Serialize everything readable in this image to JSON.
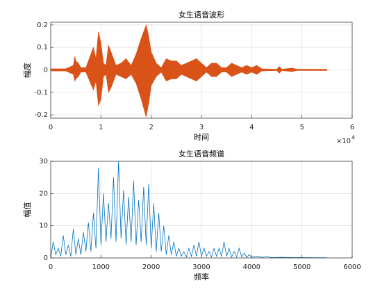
{
  "chart_data": [
    {
      "type": "area",
      "title": "女生语音波形",
      "x_label": "时间",
      "y_label": "幅度",
      "x": [
        0,
        3000,
        3500,
        4500,
        4800,
        5000,
        5500,
        6000,
        7000,
        8500,
        9000,
        9500,
        10000,
        10500,
        11000,
        11500,
        12000,
        12500,
        13000,
        14000,
        15000,
        16000,
        17000,
        18000,
        19000,
        19500,
        20000,
        21000,
        22000,
        22500,
        23000,
        24000,
        25000,
        26000,
        27000,
        28000,
        29000,
        30000,
        31000,
        32000,
        33000,
        34000,
        35000,
        36000,
        37000,
        38000,
        39000,
        40000,
        41000,
        42000,
        45000,
        45500,
        46000,
        48000,
        49000,
        55000
      ],
      "series": [
        {
          "color": "#D95319",
          "values": [
            0.005,
            0.005,
            0.01,
            0.02,
            0.06,
            0.04,
            0.03,
            0.01,
            0.01,
            0.1,
            0.05,
            0.17,
            0.12,
            0.03,
            0.02,
            0.11,
            0.08,
            0.05,
            0.02,
            0.03,
            0.05,
            0.02,
            0.07,
            0.14,
            0.2,
            0.15,
            0.08,
            0.03,
            0.01,
            0.03,
            0.05,
            0.04,
            0.04,
            0.02,
            0.03,
            0.04,
            0.05,
            0.03,
            0.01,
            0.03,
            0.03,
            0.01,
            0.01,
            0.03,
            0.02,
            0.01,
            0.02,
            0.01,
            0.02,
            0.005,
            0.003,
            0.015,
            0.003,
            0.008,
            0.003,
            0.003
          ]
        },
        {
          "color": "#D95319",
          "values": [
            -0.005,
            -0.005,
            -0.01,
            -0.02,
            -0.05,
            -0.04,
            -0.03,
            -0.01,
            -0.01,
            -0.09,
            -0.05,
            -0.16,
            -0.13,
            -0.03,
            -0.02,
            -0.1,
            -0.08,
            -0.05,
            -0.02,
            -0.03,
            -0.04,
            -0.02,
            -0.06,
            -0.13,
            -0.21,
            -0.15,
            -0.07,
            -0.03,
            -0.01,
            -0.03,
            -0.05,
            -0.04,
            -0.04,
            -0.02,
            -0.03,
            -0.04,
            -0.05,
            -0.03,
            -0.01,
            -0.03,
            -0.03,
            -0.01,
            -0.01,
            -0.03,
            -0.02,
            -0.01,
            -0.02,
            -0.01,
            -0.02,
            -0.005,
            -0.003,
            -0.015,
            -0.003,
            -0.008,
            -0.003,
            -0.003
          ]
        }
      ],
      "xlim": [
        0,
        60000
      ],
      "xticks": [
        0,
        {
          "value": 10000,
          "label": "1"
        },
        {
          "value": 20000,
          "label": "2"
        },
        {
          "value": 30000,
          "label": "3"
        },
        {
          "value": 40000,
          "label": "4"
        },
        {
          "value": 50000,
          "label": "5"
        },
        {
          "value": 60000,
          "label": "6"
        }
      ],
      "x_exponent_base": "×10",
      "x_exponent": "4",
      "ylim": [
        -0.215,
        0.212
      ],
      "yticks": [
        -0.2,
        -0.1,
        0,
        0.1,
        0.2
      ],
      "grid": true
    },
    {
      "type": "line",
      "title": "女生语音频谱",
      "x_label": "频率",
      "y_label": "幅值",
      "x": [
        0,
        50,
        100,
        150,
        200,
        250,
        300,
        350,
        400,
        450,
        500,
        550,
        600,
        650,
        700,
        750,
        800,
        850,
        900,
        950,
        1000,
        1050,
        1100,
        1150,
        1200,
        1250,
        1300,
        1350,
        1400,
        1450,
        1500,
        1550,
        1600,
        1650,
        1700,
        1750,
        1800,
        1850,
        1900,
        1950,
        2000,
        2050,
        2100,
        2150,
        2200,
        2250,
        2300,
        2350,
        2400,
        2450,
        2500,
        2550,
        2600,
        2650,
        2700,
        2750,
        2800,
        2850,
        2900,
        2950,
        3000,
        3050,
        3100,
        3150,
        3200,
        3250,
        3300,
        3350,
        3400,
        3450,
        3500,
        3550,
        3600,
        3650,
        3700,
        3750,
        3800,
        3850,
        3900,
        3950,
        4000,
        4100,
        4200,
        4300,
        4400,
        4600,
        4800,
        5000,
        5500
      ],
      "series": [
        {
          "color": "#0072BD",
          "values": [
            0,
            5,
            1,
            3,
            0.5,
            7,
            1,
            4,
            0.5,
            9,
            1,
            6,
            1,
            8,
            2,
            11,
            2,
            14,
            3,
            28,
            4,
            20,
            5,
            17,
            6,
            25,
            5,
            30,
            6,
            21,
            4,
            19,
            5,
            24,
            4,
            18,
            5,
            22,
            4,
            23,
            3,
            17,
            2,
            14,
            2,
            10,
            1,
            7,
            1,
            5,
            0.5,
            3,
            0.5,
            2,
            0.3,
            3,
            0.5,
            4,
            0.5,
            5,
            0.5,
            3,
            0.5,
            2,
            0.3,
            3,
            0.5,
            3,
            0.5,
            5,
            0.5,
            3,
            0.3,
            2,
            0.3,
            3,
            0.3,
            1.5,
            0.2,
            1,
            0.2,
            0.5,
            0.2,
            0.4,
            0.1,
            0.2,
            0.1,
            0.1,
            0.05
          ]
        }
      ],
      "xlim": [
        0,
        6000
      ],
      "xticks": [
        0,
        1000,
        2000,
        3000,
        4000,
        5000,
        6000
      ],
      "ylim": [
        0,
        30
      ],
      "yticks": [
        0,
        10,
        20,
        30
      ],
      "grid": true
    }
  ]
}
